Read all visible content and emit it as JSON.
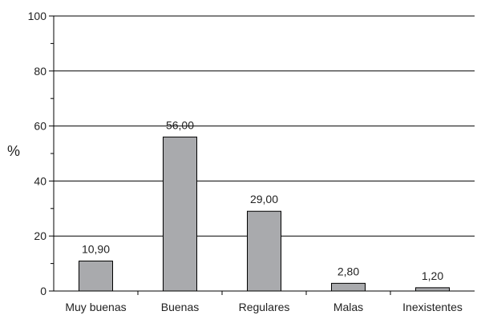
{
  "chart_data": {
    "type": "bar",
    "title": "",
    "xlabel": "",
    "ylabel": "%",
    "categories": [
      "Muy buenas",
      "Buenas",
      "Regulares",
      "Malas",
      "Inexistentes"
    ],
    "values": [
      10.9,
      56.0,
      29.0,
      2.8,
      1.2
    ],
    "value_labels": [
      "10,90",
      "56,00",
      "29,00",
      "2,80",
      "1,20"
    ],
    "ylim": [
      0,
      100
    ],
    "yticks": [
      0,
      20,
      40,
      60,
      80,
      100
    ],
    "ytick_labels": [
      "0",
      "20",
      "40",
      "60",
      "80",
      "100"
    ],
    "grid": true,
    "legend": "none",
    "bar_color": "#a9aaad",
    "bar_edge_color": "#000000"
  }
}
